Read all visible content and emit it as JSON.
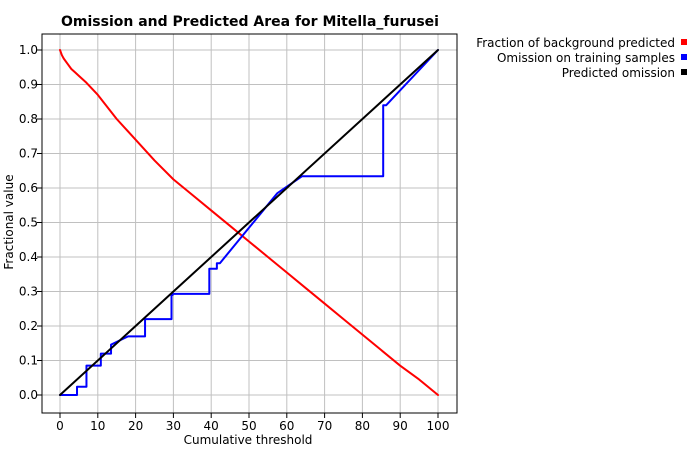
{
  "chart_data": {
    "type": "line",
    "title": "Omission and Predicted Area for Mitella_furusei",
    "xlabel": "Cumulative threshold",
    "ylabel": "Fractional value",
    "xlim": [
      0,
      100
    ],
    "ylim": [
      0,
      1
    ],
    "xticks": [
      0,
      10,
      20,
      30,
      40,
      50,
      60,
      70,
      80,
      90,
      100
    ],
    "yticks": [
      0.0,
      0.1,
      0.2,
      0.3,
      0.4,
      0.5,
      0.6,
      0.7,
      0.8,
      0.9,
      1.0
    ],
    "xtick_labels": [
      "0",
      "10",
      "20",
      "30",
      "40",
      "50",
      "60",
      "70",
      "80",
      "90",
      "100"
    ],
    "ytick_labels": [
      "0.0",
      "0.1",
      "0.2",
      "0.3",
      "0.4",
      "0.5",
      "0.6",
      "0.7",
      "0.8",
      "0.9",
      "1.0"
    ],
    "grid": true,
    "legend_position": "top-right outside",
    "series": [
      {
        "name": "Fraction of background predicted",
        "color": "#ff0000",
        "x": [
          0,
          0.5,
          1,
          2,
          3,
          4,
          5,
          7,
          10,
          15,
          20,
          25,
          30,
          35,
          40,
          45,
          50,
          55,
          60,
          65,
          70,
          75,
          80,
          85,
          90,
          95,
          100
        ],
        "y": [
          1.0,
          0.985,
          0.975,
          0.96,
          0.945,
          0.935,
          0.925,
          0.905,
          0.87,
          0.8,
          0.74,
          0.68,
          0.625,
          0.58,
          0.535,
          0.49,
          0.445,
          0.4,
          0.355,
          0.31,
          0.265,
          0.22,
          0.175,
          0.13,
          0.085,
          0.045,
          0.0
        ]
      },
      {
        "name": "Omission on training samples",
        "color": "#0000ff",
        "x": [
          0,
          4.5,
          4.5,
          7,
          7,
          7.8,
          7.8,
          10.8,
          10.8,
          12,
          12,
          13.5,
          13.5,
          18,
          18,
          22.5,
          22.5,
          29.5,
          29.5,
          29.8,
          29.8,
          39.5,
          39.5,
          39.7,
          39.7,
          41.5,
          41.5,
          42.3,
          42.3,
          57.5,
          57.5,
          64,
          64,
          85.5,
          85.5,
          86.3,
          86.3,
          100
        ],
        "y": [
          0.0,
          0.0,
          0.024,
          0.024,
          0.085,
          0.085,
          0.085,
          0.085,
          0.12,
          0.12,
          0.12,
          0.12,
          0.146,
          0.17,
          0.17,
          0.17,
          0.22,
          0.22,
          0.29,
          0.29,
          0.293,
          0.293,
          0.366,
          0.366,
          0.366,
          0.366,
          0.382,
          0.382,
          0.382,
          0.585,
          0.585,
          0.634,
          0.634,
          0.634,
          0.84,
          0.84,
          0.84,
          1.0
        ]
      },
      {
        "name": "Predicted omission",
        "color": "#000000",
        "x": [
          0,
          100
        ],
        "y": [
          0.0,
          1.0
        ]
      }
    ]
  }
}
